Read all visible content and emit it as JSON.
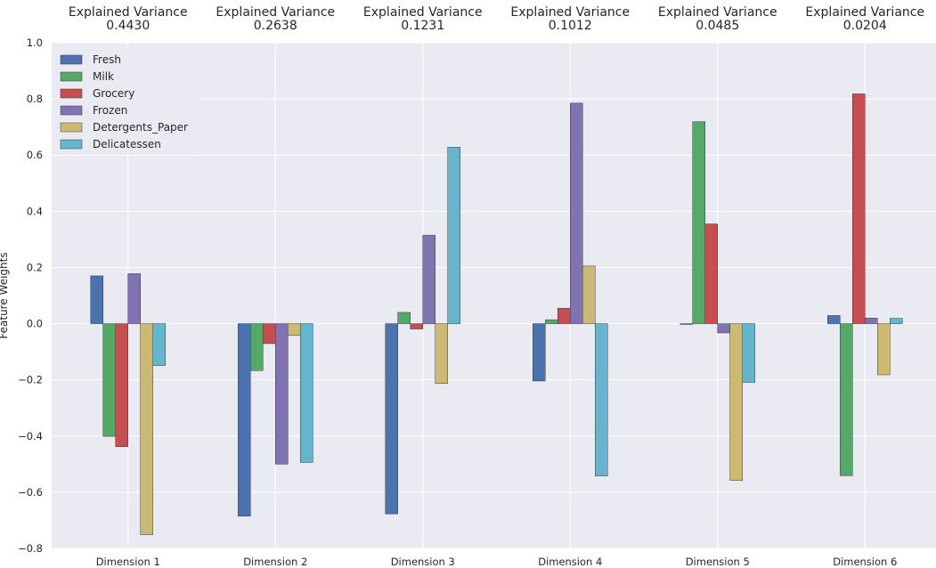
{
  "chart_data": {
    "type": "bar",
    "categories": [
      "Dimension 1",
      "Dimension 2",
      "Dimension 3",
      "Dimension 4",
      "Dimension 5",
      "Dimension 6"
    ],
    "explained_variance_label": "Explained Variance",
    "explained_variance": [
      "0.4430",
      "0.2638",
      "0.1231",
      "0.1012",
      "0.0485",
      "0.0204"
    ],
    "ylabel": "Feature Weights",
    "ylim": [
      -0.8,
      1.0
    ],
    "yticks": [
      "1.0",
      "0.8",
      "0.6",
      "0.4",
      "0.2",
      "0.0",
      "−0.2",
      "−0.4",
      "−0.6",
      "−0.8"
    ],
    "ytick_values": [
      1.0,
      0.8,
      0.6,
      0.4,
      0.2,
      0.0,
      -0.2,
      -0.4,
      -0.6,
      -0.8
    ],
    "grid": true,
    "legend_position": "top-left",
    "series": [
      {
        "name": "Fresh",
        "color": "#4c72b0",
        "values": [
          0.17,
          -0.685,
          -0.677,
          -0.204,
          -0.003,
          0.029
        ]
      },
      {
        "name": "Milk",
        "color": "#55a868",
        "values": [
          -0.401,
          -0.167,
          0.04,
          0.014,
          0.719,
          -0.541
        ]
      },
      {
        "name": "Grocery",
        "color": "#c44e52",
        "values": [
          -0.438,
          -0.071,
          -0.019,
          0.055,
          0.355,
          0.818
        ]
      },
      {
        "name": "Frozen",
        "color": "#8172b2",
        "values": [
          0.178,
          -0.5,
          0.315,
          0.785,
          -0.033,
          0.02
        ]
      },
      {
        "name": "Detergents_Paper",
        "color": "#ccb974",
        "values": [
          -0.751,
          -0.042,
          -0.213,
          0.205,
          -0.558,
          -0.182
        ]
      },
      {
        "name": "Delicatessen",
        "color": "#64b5cd",
        "values": [
          -0.149,
          -0.494,
          0.628,
          -0.542,
          -0.209,
          0.019
        ]
      }
    ]
  }
}
